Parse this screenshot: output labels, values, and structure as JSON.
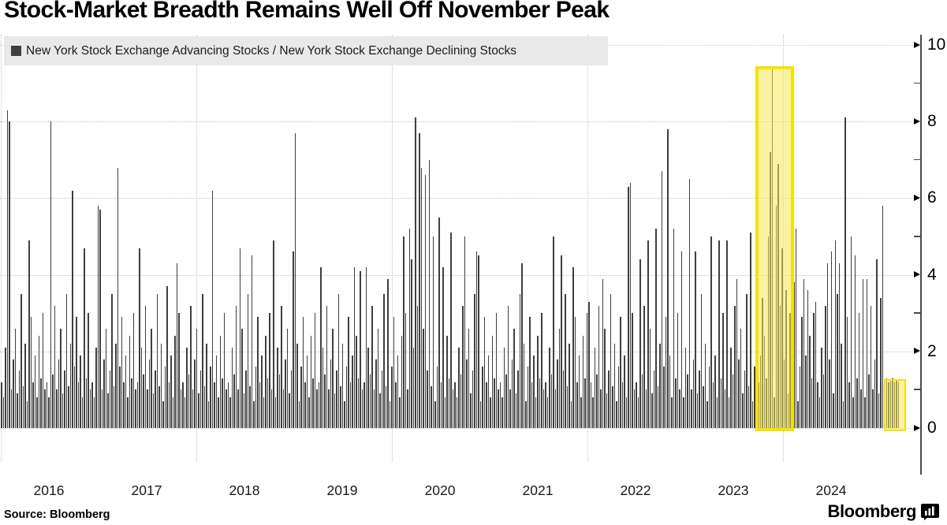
{
  "title": "Stock-Market Breadth Remains Well Off November Peak",
  "legend": {
    "label": "New York Stock Exchange Advancing Stocks / New York Stock Exchange Declining Stocks",
    "marker_color": "#3f3f3f"
  },
  "source": {
    "label": "Source: Bloomberg"
  },
  "brand": {
    "name": "Bloomberg",
    "icon": "bloomberg-terminal-icon"
  },
  "colors": {
    "bar": "#3f3f3f",
    "grid": "#c5c5c5",
    "axis": "#4a4a4a",
    "highlight_border": "#f2e307",
    "highlight_fill": "rgba(247,232,90,0.55)",
    "legend_bg": "#e9e9e9",
    "background": "#ffffff"
  },
  "chart_data": {
    "type": "bar",
    "title": "Stock-Market Breadth Remains Well Off November Peak",
    "series_name": "New York Stock Exchange Advancing Stocks / New York Stock Exchange Declining Stocks",
    "frequency": "weekly",
    "x_start": "2016-01",
    "x_end": "2024-10",
    "x_tick_labels": [
      "2016",
      "2017",
      "2018",
      "2019",
      "2020",
      "2021",
      "2022",
      "2023",
      "2024"
    ],
    "x_gridline_years": [
      2016,
      2018,
      2020,
      2022,
      2024
    ],
    "ylim": [
      0,
      10.4
    ],
    "y_ticks": [
      0,
      2,
      4,
      6,
      8,
      10
    ],
    "y_minor_ticks": [
      1,
      3,
      5,
      7,
      9
    ],
    "grid": "dotted",
    "legend_position": "top-left",
    "values": [
      1.2,
      0.8,
      2.1,
      8.3,
      8.0,
      1.0,
      1.8,
      2.6,
      0.9,
      1.5,
      3.5,
      1.1,
      2.2,
      0.7,
      4.9,
      2.9,
      1.2,
      1.9,
      0.8,
      2.4,
      1.3,
      3.0,
      1.0,
      1.2,
      0.8,
      8.0,
      1.4,
      3.2,
      1.0,
      1.8,
      2.6,
      0.9,
      1.5,
      3.5,
      1.1,
      2.2,
      6.2,
      1.6,
      2.9,
      1.2,
      1.9,
      0.8,
      4.7,
      1.3,
      3.0,
      1.0,
      1.2,
      0.8,
      2.1,
      5.8,
      5.7,
      1.0,
      1.8,
      2.6,
      0.9,
      1.5,
      3.5,
      1.1,
      2.2,
      6.8,
      1.6,
      2.9,
      1.2,
      1.9,
      0.8,
      2.4,
      1.3,
      3.0,
      1.0,
      1.2,
      4.7,
      2.1,
      1.4,
      3.2,
      1.0,
      1.8,
      2.6,
      0.9,
      1.5,
      3.5,
      1.1,
      2.2,
      0.7,
      1.6,
      3.7,
      1.2,
      1.9,
      0.8,
      2.4,
      4.3,
      3.0,
      1.0,
      1.2,
      0.8,
      2.1,
      1.4,
      3.2,
      1.0,
      1.8,
      2.6,
      0.9,
      1.5,
      3.5,
      1.1,
      2.2,
      0.7,
      1.6,
      6.2,
      1.2,
      1.9,
      0.8,
      2.4,
      1.3,
      3.0,
      1.0,
      1.2,
      0.8,
      2.1,
      1.4,
      3.2,
      1.0,
      4.7,
      2.6,
      0.9,
      1.5,
      3.5,
      1.1,
      4.5,
      0.7,
      1.6,
      2.9,
      1.2,
      1.9,
      0.8,
      2.4,
      1.3,
      3.0,
      1.0,
      4.9,
      0.8,
      2.1,
      1.4,
      3.2,
      1.0,
      1.8,
      2.6,
      0.9,
      1.5,
      4.6,
      7.7,
      2.2,
      0.7,
      1.6,
      2.9,
      1.2,
      1.9,
      0.8,
      2.4,
      1.3,
      3.0,
      1.0,
      1.2,
      4.2,
      2.1,
      1.4,
      3.2,
      1.0,
      1.8,
      2.6,
      0.9,
      1.5,
      3.5,
      1.1,
      2.2,
      0.7,
      1.6,
      2.9,
      1.2,
      1.9,
      4.2,
      2.4,
      1.3,
      4.1,
      1.0,
      1.2,
      4.2,
      2.1,
      1.4,
      3.2,
      1.0,
      1.8,
      2.6,
      0.9,
      1.5,
      3.5,
      1.1,
      3.9,
      0.7,
      1.6,
      2.9,
      1.2,
      1.9,
      0.8,
      2.4,
      5.0,
      3.0,
      1.0,
      5.2,
      4.4,
      2.1,
      8.1,
      3.2,
      7.7,
      6.8,
      2.6,
      6.6,
      1.5,
      7.0,
      1.1,
      5.0,
      0.7,
      1.6,
      5.5,
      1.2,
      4.2,
      0.8,
      2.4,
      1.3,
      5.1,
      1.0,
      1.2,
      0.8,
      2.1,
      1.4,
      3.2,
      5.0,
      1.8,
      2.6,
      0.9,
      1.5,
      3.5,
      4.6,
      4.5,
      0.7,
      1.6,
      2.9,
      1.2,
      1.9,
      0.8,
      2.4,
      1.3,
      3.0,
      1.0,
      1.2,
      0.8,
      2.1,
      1.4,
      3.2,
      1.0,
      1.8,
      2.6,
      0.9,
      1.5,
      3.5,
      4.3,
      2.2,
      0.7,
      1.6,
      2.9,
      1.2,
      1.9,
      0.8,
      2.4,
      1.3,
      3.0,
      1.0,
      1.2,
      0.8,
      2.1,
      1.4,
      5.0,
      1.0,
      1.8,
      2.6,
      4.5,
      1.5,
      3.5,
      1.1,
      2.2,
      0.7,
      4.2,
      2.9,
      1.2,
      1.9,
      0.8,
      2.4,
      1.3,
      3.0,
      3.3,
      1.2,
      0.8,
      2.1,
      1.4,
      3.2,
      1.0,
      3.9,
      2.6,
      0.9,
      1.5,
      3.5,
      1.1,
      2.2,
      0.7,
      1.6,
      2.9,
      1.2,
      1.9,
      0.8,
      6.3,
      6.4,
      3.0,
      1.0,
      1.2,
      0.8,
      4.4,
      1.4,
      3.2,
      1.0,
      4.9,
      2.6,
      0.9,
      1.5,
      5.2,
      1.1,
      2.2,
      6.7,
      1.6,
      2.9,
      7.8,
      1.9,
      0.8,
      5.2,
      1.3,
      3.0,
      1.0,
      4.6,
      0.8,
      2.1,
      1.4,
      6.5,
      1.0,
      1.8,
      4.6,
      0.9,
      1.5,
      3.5,
      1.1,
      2.2,
      0.7,
      1.6,
      5.0,
      1.2,
      1.9,
      0.8,
      4.9,
      1.3,
      3.0,
      1.0,
      4.9,
      0.8,
      2.1,
      1.4,
      3.2,
      3.9,
      1.8,
      2.6,
      0.9,
      1.5,
      3.5,
      1.1,
      5.1,
      0.7,
      1.6,
      2.9,
      1.2,
      1.9,
      3.4,
      2.4,
      1.3,
      5.0,
      7.2,
      9.4,
      0.8,
      5.8,
      6.9,
      3.2,
      4.7,
      1.8,
      3.6,
      0.9,
      3.0,
      3.5,
      3.8,
      5.2,
      0.7,
      1.6,
      2.9,
      3.9,
      1.9,
      3.6,
      2.4,
      1.3,
      3.0,
      3.3,
      1.2,
      0.8,
      2.1,
      1.4,
      3.2,
      4.3,
      1.8,
      4.6,
      0.9,
      4.9,
      3.5,
      4.3,
      2.2,
      0.7,
      8.1,
      2.9,
      1.2,
      5.0,
      0.8,
      4.5,
      1.3,
      3.0,
      1.0,
      3.9,
      0.8,
      3.9,
      1.4,
      3.2,
      1.0,
      1.8,
      4.4,
      0.9,
      3.4,
      5.8,
      1.25,
      1.3,
      1.2,
      1.25,
      1.3,
      1.2,
      1.25,
      1.2
    ],
    "annotations": [
      {
        "name": "november-peak-highlight",
        "type": "highlight-box",
        "description": "Breadth peak, November-December 2023",
        "start_week_index": 382.8,
        "end_week_index": 402.4,
        "top_value": 9.44,
        "border_px": 4
      },
      {
        "name": "current-reading-highlight",
        "type": "highlight-box",
        "description": "Latest breadth reading well below peak",
        "start_week_index": 447.8,
        "end_week_index": 459.0,
        "top_value": 1.28,
        "border_px": 2.5
      }
    ]
  }
}
